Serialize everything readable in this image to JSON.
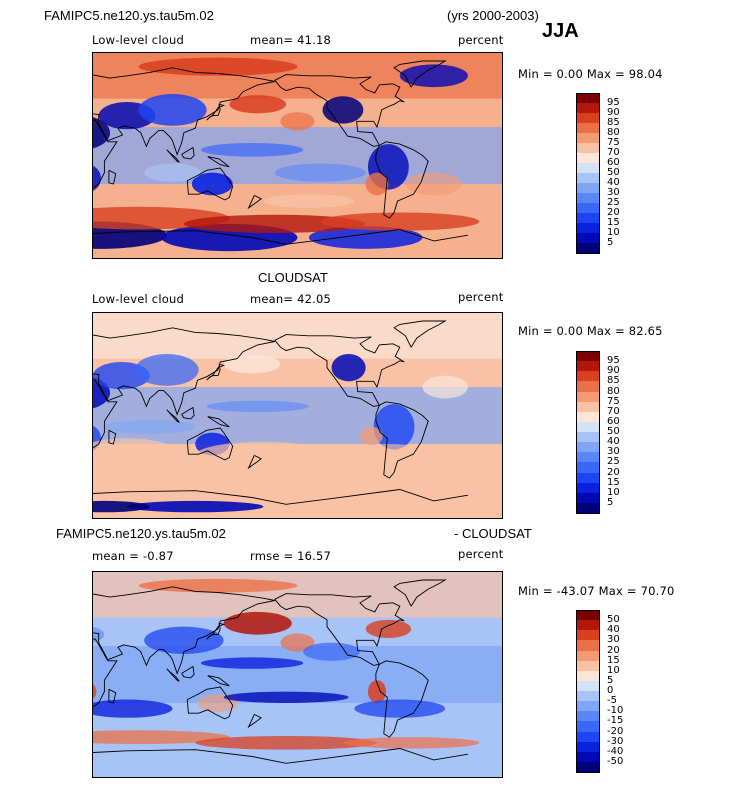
{
  "season": "JJA",
  "coastline_color": "#000000",
  "panels": [
    {
      "id": "model",
      "header_left": "FAMIPC5.ne120.ys.tau5m.02",
      "header_right": "(yrs 2000-2003)",
      "variable": "Low-level cloud",
      "stat1": "mean=  41.18",
      "stat2": "",
      "units": "percent",
      "minmax": "Min =   0.00 Max =  98.04"
    },
    {
      "id": "obs",
      "header_left": "CLOUDSAT",
      "header_right": "",
      "variable": "Low-level cloud",
      "stat1": "mean=  42.05",
      "stat2": "",
      "units": "percent",
      "minmax": "Min =   0.00 Max =  82.65"
    },
    {
      "id": "diff",
      "header_left": "FAMIPC5.ne120.ys.tau5m.02",
      "header_right": "- CLOUDSAT",
      "variable": "",
      "stat1": "mean =  -0.87",
      "stat2": "rmse =  16.57",
      "units": "percent",
      "minmax": "Min = -43.07 Max =  70.70"
    }
  ],
  "chart_data": [
    {
      "type": "heatmap",
      "title": "FAMIPC5.ne120.ys.tau5m.02 (yrs 2000-2003) JJA",
      "subtitle": "Low-level cloud",
      "units": "percent",
      "mean": 41.18,
      "min": 0.0,
      "max": 98.04,
      "colorbar_levels": [
        5,
        10,
        15,
        20,
        25,
        30,
        40,
        50,
        60,
        70,
        75,
        80,
        85,
        90,
        95
      ],
      "colorbar_colors": [
        "#00007a",
        "#0009b6",
        "#0a22e0",
        "#1d45f2",
        "#3a68f6",
        "#5a87f7",
        "#7ea5f6",
        "#a8c3f5",
        "#d4e2f7",
        "#fbe6d9",
        "#f9c2a5",
        "#f59b73",
        "#ec7047",
        "#d9401f",
        "#b3160b",
        "#7c0000"
      ]
    },
    {
      "type": "heatmap",
      "title": "CLOUDSAT",
      "subtitle": "Low-level cloud",
      "units": "percent",
      "mean": 42.05,
      "min": 0.0,
      "max": 82.65,
      "colorbar_levels": [
        5,
        10,
        15,
        20,
        25,
        30,
        40,
        50,
        60,
        70,
        75,
        80,
        85,
        90,
        95
      ],
      "colorbar_colors": [
        "#00007a",
        "#0009b6",
        "#0a22e0",
        "#1d45f2",
        "#3a68f6",
        "#5a87f7",
        "#7ea5f6",
        "#a8c3f5",
        "#d4e2f7",
        "#fbe6d9",
        "#f9c2a5",
        "#f59b73",
        "#ec7047",
        "#d9401f",
        "#b3160b",
        "#7c0000"
      ]
    },
    {
      "type": "heatmap",
      "title": "FAMIPC5.ne120.ys.tau5m.02 - CLOUDSAT",
      "units": "percent",
      "mean": -0.87,
      "rmse": 16.57,
      "min": -43.07,
      "max": 70.7,
      "colorbar_levels": [
        -50,
        -40,
        -30,
        -20,
        -15,
        -10,
        -5,
        0,
        5,
        10,
        15,
        20,
        30,
        40,
        50
      ],
      "colorbar_colors": [
        "#00007a",
        "#0009b6",
        "#0a22e0",
        "#1d45f2",
        "#3a68f6",
        "#5a87f7",
        "#7ea5f6",
        "#a8c3f5",
        "#d4e2f7",
        "#fbe6d9",
        "#f9c2a5",
        "#f59b73",
        "#ec7047",
        "#d9401f",
        "#b3160b",
        "#7c0000"
      ]
    }
  ]
}
